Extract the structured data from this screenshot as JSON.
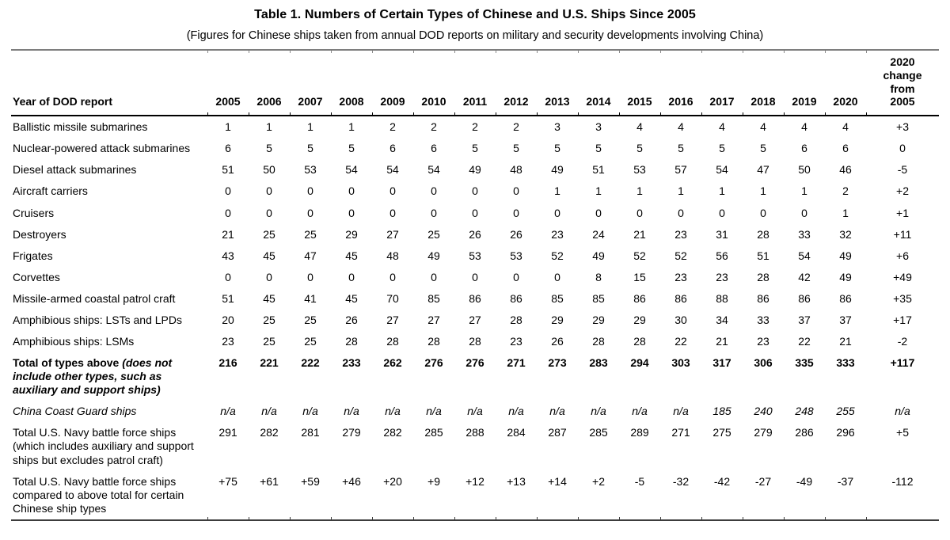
{
  "table": {
    "title": "Table 1. Numbers of Certain Types of Chinese and U.S. Ships Since 2005",
    "subtitle": "(Figures for Chinese ships taken from annual DOD reports on military and security developments involving China)",
    "header": {
      "label": "Year of DOD report",
      "years": [
        "2005",
        "2006",
        "2007",
        "2008",
        "2009",
        "2010",
        "2011",
        "2012",
        "2013",
        "2014",
        "2015",
        "2016",
        "2017",
        "2018",
        "2019",
        "2020"
      ],
      "change": "2020 change from 2005"
    },
    "rows": [
      {
        "label": "Ballistic missile submarines",
        "style": "normal",
        "values": [
          "1",
          "1",
          "1",
          "1",
          "2",
          "2",
          "2",
          "2",
          "3",
          "3",
          "4",
          "4",
          "4",
          "4",
          "4",
          "4",
          "+3"
        ]
      },
      {
        "label": "Nuclear-powered attack submarines",
        "style": "normal",
        "values": [
          "6",
          "5",
          "5",
          "5",
          "6",
          "6",
          "5",
          "5",
          "5",
          "5",
          "5",
          "5",
          "5",
          "5",
          "6",
          "6",
          "0"
        ]
      },
      {
        "label": "Diesel attack submarines",
        "style": "normal",
        "values": [
          "51",
          "50",
          "53",
          "54",
          "54",
          "54",
          "49",
          "48",
          "49",
          "51",
          "53",
          "57",
          "54",
          "47",
          "50",
          "46",
          "-5"
        ]
      },
      {
        "label": "Aircraft carriers",
        "style": "normal",
        "values": [
          "0",
          "0",
          "0",
          "0",
          "0",
          "0",
          "0",
          "0",
          "1",
          "1",
          "1",
          "1",
          "1",
          "1",
          "1",
          "2",
          "+2"
        ]
      },
      {
        "label": "Cruisers",
        "style": "normal",
        "values": [
          "0",
          "0",
          "0",
          "0",
          "0",
          "0",
          "0",
          "0",
          "0",
          "0",
          "0",
          "0",
          "0",
          "0",
          "0",
          "1",
          "+1"
        ]
      },
      {
        "label": "Destroyers",
        "style": "normal",
        "values": [
          "21",
          "25",
          "25",
          "29",
          "27",
          "25",
          "26",
          "26",
          "23",
          "24",
          "21",
          "23",
          "31",
          "28",
          "33",
          "32",
          "+11"
        ]
      },
      {
        "label": "Frigates",
        "style": "normal",
        "values": [
          "43",
          "45",
          "47",
          "45",
          "48",
          "49",
          "53",
          "53",
          "52",
          "49",
          "52",
          "52",
          "56",
          "51",
          "54",
          "49",
          "+6"
        ]
      },
      {
        "label": "Corvettes",
        "style": "normal",
        "values": [
          "0",
          "0",
          "0",
          "0",
          "0",
          "0",
          "0",
          "0",
          "0",
          "8",
          "15",
          "23",
          "23",
          "28",
          "42",
          "49",
          "+49"
        ]
      },
      {
        "label": "Missile-armed coastal patrol craft",
        "style": "normal",
        "values": [
          "51",
          "45",
          "41",
          "45",
          "70",
          "85",
          "86",
          "86",
          "85",
          "85",
          "86",
          "86",
          "88",
          "86",
          "86",
          "86",
          "+35"
        ]
      },
      {
        "label": "Amphibious ships: LSTs and LPDs",
        "style": "normal",
        "values": [
          "20",
          "25",
          "25",
          "26",
          "27",
          "27",
          "27",
          "28",
          "29",
          "29",
          "29",
          "30",
          "34",
          "33",
          "37",
          "37",
          "+17"
        ]
      },
      {
        "label": "Amphibious ships: LSMs",
        "style": "normal",
        "values": [
          "23",
          "25",
          "25",
          "28",
          "28",
          "28",
          "28",
          "23",
          "26",
          "28",
          "28",
          "22",
          "21",
          "23",
          "22",
          "21",
          "-2"
        ]
      },
      {
        "label": [
          {
            "t": "Total of types above ",
            "i": 0
          },
          {
            "t": "(does not include other types, such as auxiliary and support ships)",
            "i": 1
          }
        ],
        "style": "bold",
        "values": [
          "216",
          "221",
          "222",
          "233",
          "262",
          "276",
          "276",
          "271",
          "273",
          "283",
          "294",
          "303",
          "317",
          "306",
          "335",
          "333",
          "+117"
        ]
      },
      {
        "label": "China Coast Guard ships",
        "style": "italic",
        "values": [
          "n/a",
          "n/a",
          "n/a",
          "n/a",
          "n/a",
          "n/a",
          "n/a",
          "n/a",
          "n/a",
          "n/a",
          "n/a",
          "n/a",
          "185",
          "240",
          "248",
          "255",
          "n/a"
        ]
      },
      {
        "label": "Total U.S. Navy battle force ships (which includes auxiliary and support ships but excludes patrol craft)",
        "style": "normal",
        "values": [
          "291",
          "282",
          "281",
          "279",
          "282",
          "285",
          "288",
          "284",
          "287",
          "285",
          "289",
          "271",
          "275",
          "279",
          "286",
          "296",
          "+5"
        ]
      },
      {
        "label": "Total U.S. Navy battle force ships compared to above total for certain Chinese ship types",
        "style": "normal",
        "values": [
          "+75",
          "+61",
          "+59",
          "+46",
          "+20",
          "+9",
          "+12",
          "+13",
          "+14",
          "+2",
          "-5",
          "-32",
          "-42",
          "-27",
          "-49",
          "-37",
          "-112"
        ]
      }
    ]
  }
}
